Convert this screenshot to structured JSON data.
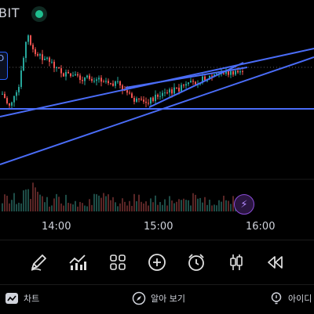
{
  "header": {
    "symbol": "BIT"
  },
  "side_tag": {
    "label": "D"
  },
  "time_axis": {
    "labels": [
      "14:00",
      "15:00",
      "16:00"
    ]
  },
  "toolbar": {
    "items": [
      {
        "icon": "pencil-icon"
      },
      {
        "icon": "chart-line-icon"
      },
      {
        "icon": "grid-icon"
      },
      {
        "icon": "plus-circle-icon"
      },
      {
        "icon": "alarm-clock-icon"
      },
      {
        "icon": "candlestick-icon"
      },
      {
        "icon": "rewind-icon"
      }
    ]
  },
  "bottom_nav": {
    "items": [
      {
        "label": "차트",
        "icon": "chart-icon"
      },
      {
        "label": "알아 보기",
        "icon": "compass-icon"
      },
      {
        "label": "아이디",
        "icon": "lightbulb-icon"
      }
    ]
  },
  "colors": {
    "up": "#26a69a",
    "down": "#ef5350",
    "trendline": "#4a6cf7",
    "background": "#000000"
  }
}
